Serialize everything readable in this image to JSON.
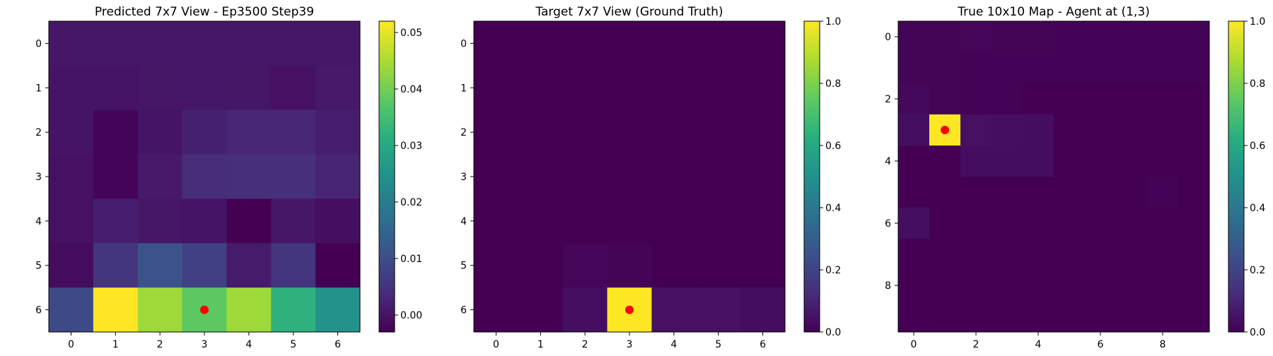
{
  "chart_data": [
    {
      "type": "heatmap",
      "title": "Predicted 7x7 View - Ep3500 Step39",
      "x_ticks": [
        "0",
        "1",
        "2",
        "3",
        "4",
        "5",
        "6"
      ],
      "y_ticks": [
        "0",
        "1",
        "2",
        "3",
        "4",
        "5",
        "6"
      ],
      "colormap": "viridis",
      "vmin": -0.003,
      "vmax": 0.052,
      "colorbar_ticks": [
        "0.00",
        "0.01",
        "0.02",
        "0.03",
        "0.04",
        "0.05"
      ],
      "colorbar_values": [
        0.0,
        0.01,
        0.02,
        0.03,
        0.04,
        0.05
      ],
      "values": [
        [
          0.0005,
          0.0005,
          0.0005,
          0.0005,
          0.0005,
          0.0005,
          0.0005
        ],
        [
          0.0,
          0.0,
          0.0003,
          0.0005,
          0.0003,
          -0.0005,
          0.0007
        ],
        [
          0.0,
          -0.0025,
          0.0,
          0.002,
          0.003,
          0.003,
          0.0015
        ],
        [
          -0.0005,
          -0.0025,
          0.0007,
          0.004,
          0.0045,
          0.0045,
          0.0025
        ],
        [
          -0.0005,
          0.0015,
          0.0003,
          0.0,
          -0.003,
          0.0003,
          -0.0008
        ],
        [
          -0.0015,
          0.0055,
          0.011,
          0.0075,
          0.001,
          0.0055,
          -0.003
        ],
        [
          0.009,
          0.052,
          0.044,
          0.038,
          0.044,
          0.032,
          0.025
        ]
      ],
      "marker": {
        "x": 3,
        "y": 6,
        "color": "#ff0000"
      }
    },
    {
      "type": "heatmap",
      "title": "Target 7x7 View (Ground Truth)",
      "x_ticks": [
        "0",
        "1",
        "2",
        "3",
        "4",
        "5",
        "6"
      ],
      "y_ticks": [
        "0",
        "1",
        "2",
        "3",
        "4",
        "5",
        "6"
      ],
      "colormap": "viridis",
      "vmin": 0.0,
      "vmax": 1.0,
      "colorbar_ticks": [
        "0.0",
        "0.2",
        "0.4",
        "0.6",
        "0.8",
        "1.0"
      ],
      "colorbar_values": [
        0.0,
        0.2,
        0.4,
        0.6,
        0.8,
        1.0
      ],
      "values": [
        [
          0,
          0,
          0,
          0,
          0,
          0,
          0
        ],
        [
          0,
          0,
          0,
          0,
          0,
          0,
          0
        ],
        [
          0,
          0,
          0,
          0,
          0,
          0,
          0
        ],
        [
          0,
          0,
          0,
          0,
          0,
          0,
          0
        ],
        [
          0,
          0,
          0,
          0,
          0,
          0,
          0
        ],
        [
          0,
          0,
          0.015,
          0.01,
          0,
          0,
          0
        ],
        [
          0,
          0,
          0.04,
          1.0,
          0.045,
          0.045,
          0.035
        ]
      ],
      "marker": {
        "x": 3,
        "y": 6,
        "color": "#ff0000"
      }
    },
    {
      "type": "heatmap",
      "title": "True 10x10 Map - Agent at (1,3)",
      "x_ticks": [
        "0",
        "2",
        "4",
        "6",
        "8"
      ],
      "x_tick_values": [
        0,
        2,
        4,
        6,
        8
      ],
      "y_ticks": [
        "0",
        "2",
        "4",
        "6",
        "8"
      ],
      "y_tick_values": [
        0,
        2,
        4,
        6,
        8
      ],
      "colormap": "viridis",
      "vmin": 0.0,
      "vmax": 1.0,
      "colorbar_ticks": [
        "0.0",
        "0.2",
        "0.4",
        "0.6",
        "0.8",
        "1.0"
      ],
      "colorbar_values": [
        0.0,
        0.2,
        0.4,
        0.6,
        0.8,
        1.0
      ],
      "values": [
        [
          0.01,
          0.01,
          0.015,
          0.01,
          0.01,
          0.005,
          0.005,
          0.005,
          0.005,
          0.005
        ],
        [
          0.01,
          0.01,
          0.005,
          0.005,
          0.005,
          0.005,
          0.005,
          0.005,
          0.005,
          0.005
        ],
        [
          0.02,
          0.01,
          0.005,
          0.005,
          0,
          0,
          0,
          0,
          0,
          0
        ],
        [
          0.04,
          1.0,
          0.045,
          0.04,
          0.035,
          0,
          0,
          0,
          0,
          0
        ],
        [
          0,
          0,
          0.035,
          0.035,
          0.035,
          0,
          0,
          0,
          0,
          0
        ],
        [
          0,
          0,
          0,
          0,
          0,
          0,
          0,
          0,
          0.005,
          0
        ],
        [
          0.04,
          0,
          0,
          0,
          0,
          0,
          0,
          0,
          0,
          0
        ],
        [
          0,
          0,
          0,
          0,
          0,
          0,
          0,
          0,
          0,
          0
        ],
        [
          0,
          0,
          0,
          0,
          0,
          0,
          0,
          0,
          0,
          0
        ],
        [
          0,
          0,
          0,
          0,
          0,
          0,
          0,
          0,
          0,
          0
        ]
      ],
      "marker": {
        "x": 1,
        "y": 3,
        "color": "#ff0000"
      }
    }
  ]
}
